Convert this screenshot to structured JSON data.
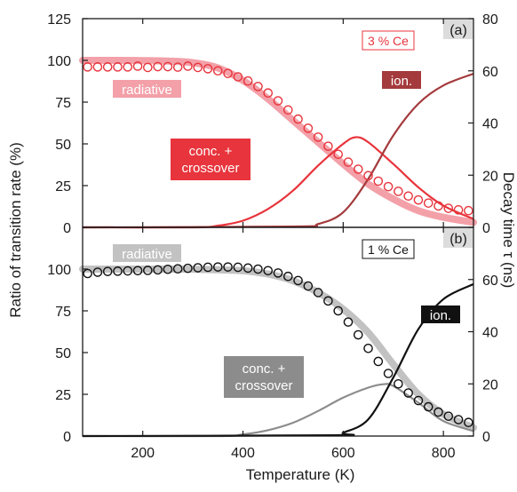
{
  "figure": {
    "xlabel": "Temperature (K)",
    "ylabel_left": "Ratio of transition rate (%)",
    "ylabel_right": "Decay time τ (ns)"
  },
  "chart_data": [
    {
      "type": "line",
      "panel_label": "(a)",
      "sample_label": "3 % Ce",
      "xlim": [
        80,
        860
      ],
      "ylim": [
        0,
        125
      ],
      "ylim_right": [
        0,
        80
      ],
      "x_ticks": [
        200,
        400,
        600,
        800
      ],
      "y_ticks": [
        0,
        25,
        50,
        75,
        100,
        125
      ],
      "y_ticks_right": [
        0,
        20,
        40,
        60,
        80
      ],
      "grid": false,
      "colors": {
        "radiative": "#f3a0a8",
        "conc": "#e8343c",
        "ion": "#a43a3c",
        "tau": "#e8343c"
      },
      "labels": {
        "radiative": "radiative",
        "conc_line1": "conc. +",
        "conc_line2": "crossover",
        "ion": "ion."
      },
      "series": [
        {
          "name": "radiative",
          "axis": "left",
          "x": [
            80,
            150,
            200,
            250,
            300,
            350,
            400,
            450,
            500,
            550,
            600,
            650,
            700,
            750,
            800,
            860
          ],
          "y": [
            100,
            100,
            99.9,
            99.6,
            98.6,
            95.5,
            88,
            77,
            64,
            51,
            38,
            26,
            17,
            10,
            6,
            3
          ]
        },
        {
          "name": "conc. + crossover",
          "axis": "left",
          "x": [
            80,
            300,
            350,
            400,
            450,
            500,
            550,
            600,
            625,
            650,
            700,
            750,
            800,
            860
          ],
          "y": [
            0,
            0,
            1,
            4,
            11,
            22,
            37,
            50,
            54,
            51,
            38,
            24,
            13,
            5
          ]
        },
        {
          "name": "ion.",
          "axis": "left",
          "x": [
            80,
            500,
            550,
            600,
            650,
            700,
            750,
            800,
            860
          ],
          "y": [
            0,
            0.5,
            2,
            9,
            29,
            55,
            74,
            85,
            92
          ]
        },
        {
          "name": "decay time",
          "axis": "right",
          "x": [
            90,
            110,
            130,
            150,
            170,
            190,
            210,
            230,
            250,
            270,
            290,
            310,
            330,
            350,
            370,
            390,
            410,
            430,
            450,
            470,
            490,
            510,
            530,
            550,
            570,
            590,
            610,
            630,
            650,
            670,
            690,
            710,
            730,
            750,
            770,
            790,
            810,
            830,
            850
          ],
          "y": [
            61.5,
            61.5,
            61.5,
            61.5,
            61.5,
            61.8,
            61.3,
            61.6,
            61.6,
            61.4,
            61.8,
            61.3,
            60.8,
            60,
            59,
            57.7,
            56.1,
            54,
            51.5,
            48.5,
            45,
            41.5,
            38,
            34.6,
            31.1,
            28,
            25,
            22.3,
            19.8,
            17.7,
            15.6,
            13.8,
            12,
            10.5,
            9.3,
            8.2,
            7.3,
            6.7,
            6.4
          ]
        }
      ]
    },
    {
      "type": "line",
      "panel_label": "(b)",
      "sample_label": "1 % Ce",
      "xlim": [
        80,
        860
      ],
      "ylim": [
        0,
        125
      ],
      "ylim_right": [
        0,
        80
      ],
      "x_ticks": [
        200,
        400,
        600,
        800
      ],
      "y_ticks": [
        0,
        25,
        50,
        75,
        100
      ],
      "y_ticks_right": [
        0,
        20,
        40,
        60
      ],
      "grid": false,
      "colors": {
        "radiative": "#c2c2c2",
        "conc": "#8c8c8c",
        "ion": "#111111",
        "tau": "#111111"
      },
      "labels": {
        "radiative": "radiative",
        "conc_line1": "conc. +",
        "conc_line2": "crossover",
        "ion": "ion."
      },
      "series": [
        {
          "name": "radiative",
          "axis": "left",
          "x": [
            80,
            200,
            300,
            400,
            450,
            500,
            550,
            600,
            650,
            700,
            750,
            800,
            860
          ],
          "y": [
            100,
            100,
            99.9,
            99,
            97,
            93,
            86,
            76,
            62,
            43,
            25,
            13,
            5
          ]
        },
        {
          "name": "conc. + crossover",
          "axis": "left",
          "x": [
            80,
            350,
            400,
            450,
            500,
            550,
            600,
            650,
            680,
            700,
            750,
            800,
            860
          ],
          "y": [
            0,
            0,
            1,
            3.5,
            8,
            15,
            23,
            29,
            31,
            30,
            20,
            9,
            3
          ]
        },
        {
          "name": "ion.",
          "axis": "left",
          "x": [
            80,
            580,
            600,
            650,
            700,
            750,
            800,
            860
          ],
          "y": [
            0,
            0.5,
            2,
            10,
            35,
            64,
            82,
            91
          ]
        },
        {
          "name": "decay time",
          "axis": "right",
          "x": [
            90,
            110,
            130,
            150,
            170,
            190,
            210,
            230,
            250,
            270,
            290,
            310,
            330,
            350,
            370,
            390,
            410,
            430,
            450,
            470,
            490,
            510,
            530,
            550,
            570,
            590,
            610,
            630,
            650,
            670,
            690,
            710,
            730,
            750,
            770,
            790,
            810,
            830,
            850
          ],
          "y": [
            62.3,
            62.8,
            63.1,
            63.2,
            63.3,
            63.4,
            63.5,
            63.7,
            63.9,
            64.1,
            64.3,
            64.5,
            64.7,
            64.8,
            64.8,
            64.7,
            64.4,
            64,
            63.4,
            62.5,
            61.2,
            59.6,
            57.5,
            55,
            51.8,
            48,
            43.7,
            38.8,
            33.6,
            28.6,
            24,
            20,
            16.5,
            13.6,
            11.2,
            9.2,
            7.6,
            6.3,
            5.2
          ]
        }
      ]
    }
  ]
}
